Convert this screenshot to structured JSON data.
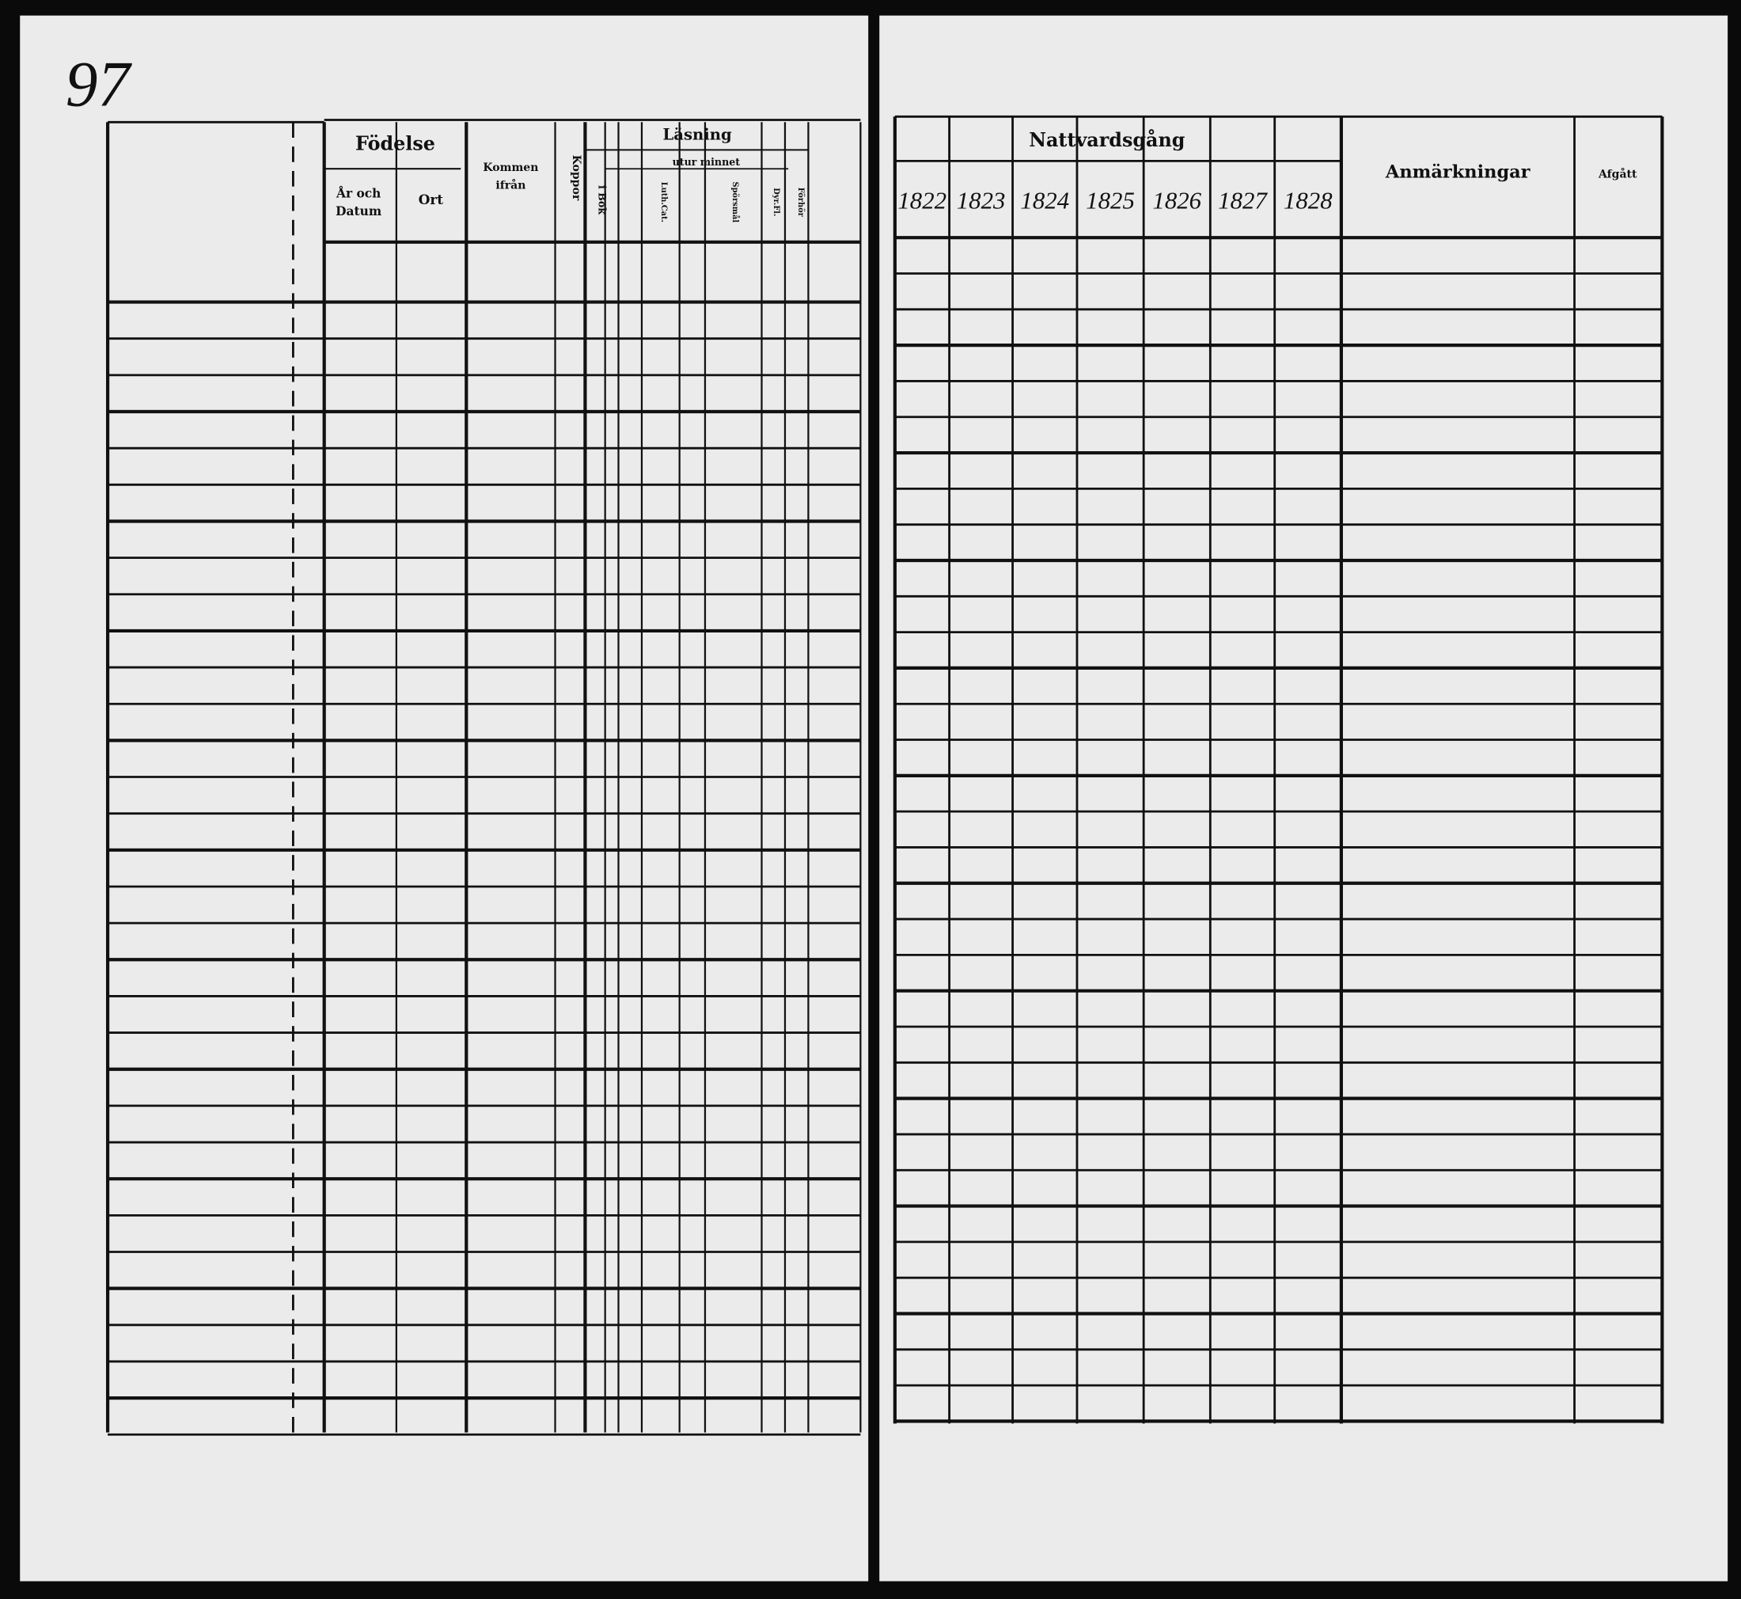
{
  "page_number": "97",
  "left_page": {
    "birth": {
      "title": "Födelse",
      "date": [
        "År och",
        "Datum"
      ],
      "place": "Ort"
    },
    "came_from": [
      "Kommen",
      "ifrån"
    ],
    "smallpox": "Koppor",
    "reading": {
      "title": "Läsning",
      "by_heart": "utur minnet",
      "in_book": "i Bok",
      "catechism": "Luth.Cat.",
      "questions": "Spörsmål",
      "columns": [
        "Dyr.Fl.",
        "Förhör"
      ]
    }
  },
  "right_page": {
    "communion": {
      "title": "Nattvardsgång",
      "years": [
        "1822",
        "1823",
        "1824",
        "1825",
        "1826",
        "1827",
        "1828"
      ]
    },
    "remarks": "Anmärkningar",
    "departed": "Afgått"
  }
}
